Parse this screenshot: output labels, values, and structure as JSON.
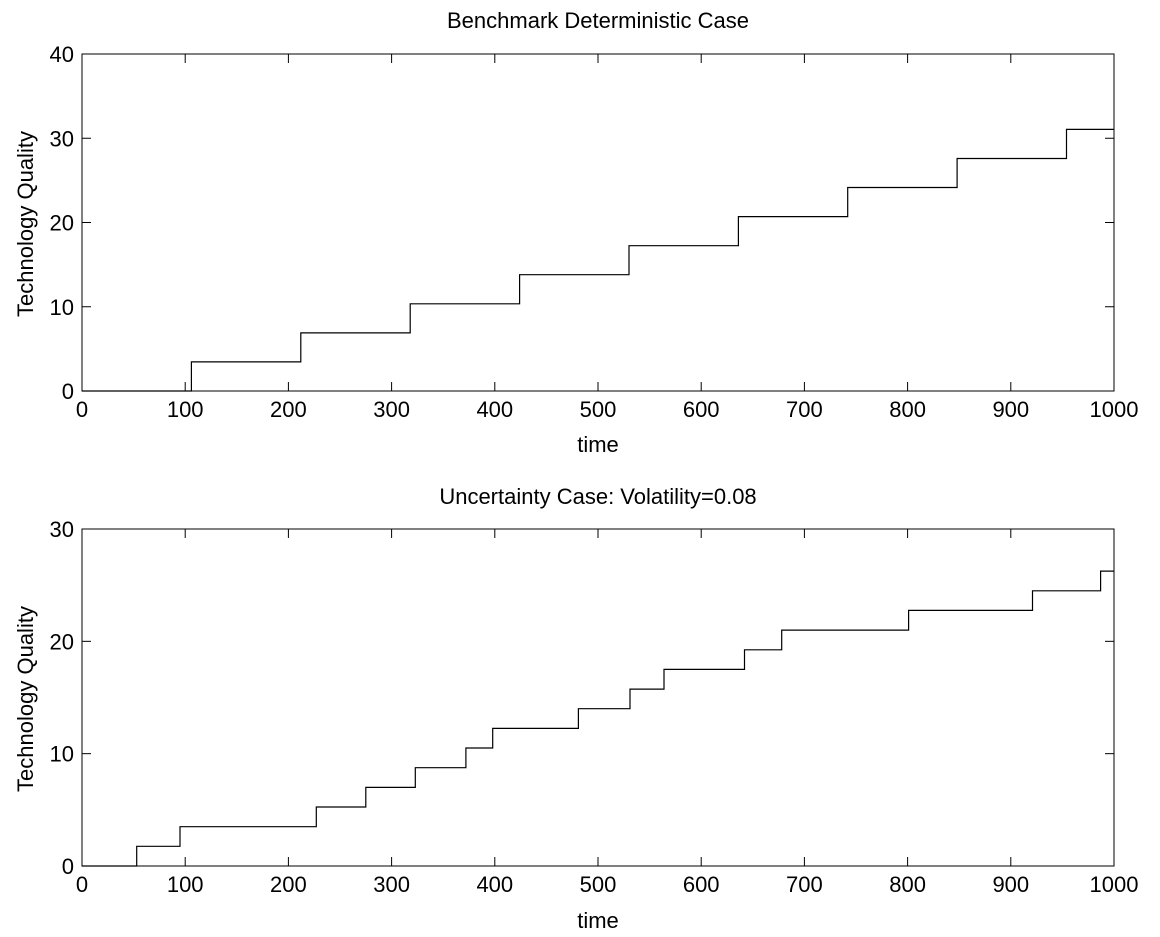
{
  "chart_data": [
    {
      "type": "line",
      "title": "Benchmark Deterministic Case",
      "xlabel": "time",
      "ylabel": "Technology Quality",
      "xlim": [
        0,
        1000
      ],
      "ylim": [
        0,
        40
      ],
      "xticks": [
        0,
        100,
        200,
        300,
        400,
        500,
        600,
        700,
        800,
        900,
        1000
      ],
      "yticks": [
        0,
        10,
        20,
        30,
        40
      ],
      "grid": false,
      "step": true,
      "series": [
        {
          "color": "#000000",
          "x": [
            0,
            106,
            106,
            212,
            212,
            318,
            318,
            424,
            424,
            530,
            530,
            636,
            636,
            742,
            742,
            848,
            848,
            954,
            954,
            1000
          ],
          "y": [
            0,
            0,
            3.45,
            3.45,
            6.9,
            6.9,
            10.35,
            10.35,
            13.8,
            13.8,
            17.25,
            17.25,
            20.7,
            20.7,
            24.15,
            24.15,
            27.6,
            27.6,
            31.05,
            31.05
          ]
        }
      ]
    },
    {
      "type": "line",
      "title": "Uncertainty Case: Volatility=0.08",
      "xlabel": "time",
      "ylabel": "Technology Quality",
      "xlim": [
        0,
        1000
      ],
      "ylim": [
        0,
        30
      ],
      "xticks": [
        0,
        100,
        200,
        300,
        400,
        500,
        600,
        700,
        800,
        900,
        1000
      ],
      "yticks": [
        0,
        10,
        20,
        30
      ],
      "grid": false,
      "step": true,
      "series": [
        {
          "color": "#000000",
          "x": [
            0,
            53,
            53,
            95,
            95,
            227,
            227,
            275,
            275,
            323,
            323,
            372,
            372,
            398,
            398,
            481,
            481,
            531,
            531,
            564,
            564,
            642,
            642,
            678,
            678,
            801,
            801,
            921,
            921,
            987,
            987,
            1000
          ],
          "y": [
            0,
            0,
            1.75,
            1.75,
            3.5,
            3.5,
            5.25,
            5.25,
            7.0,
            7.0,
            8.75,
            8.75,
            10.5,
            10.5,
            12.25,
            12.25,
            14.0,
            14.0,
            15.75,
            15.75,
            17.5,
            17.5,
            19.25,
            19.25,
            21.0,
            21.0,
            22.75,
            22.75,
            24.5,
            24.5,
            26.25,
            26.25
          ]
        }
      ]
    }
  ]
}
